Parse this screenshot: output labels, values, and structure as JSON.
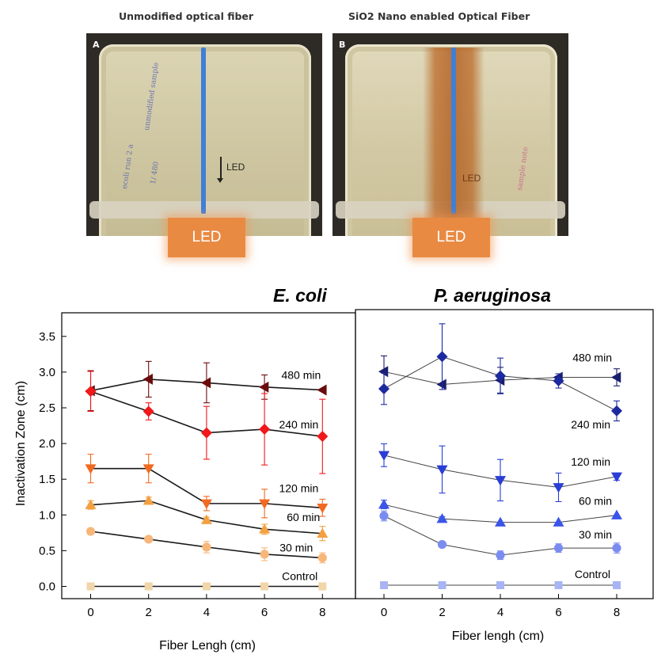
{
  "photos": {
    "a": {
      "title": "Unmodified optical fiber",
      "panel": "A",
      "label": "LED",
      "led": "LED"
    },
    "b": {
      "title": "SiO2 Nano enabled Optical Fiber",
      "panel": "B",
      "label": "LED",
      "led": "LED"
    }
  },
  "chart_data": [
    {
      "type": "line",
      "title": "E. coli",
      "xlabel": "Fiber Lengh (cm)",
      "ylabel": "Inactivation Zone (cm)",
      "xlim": [
        -1,
        9
      ],
      "ylim": [
        -0.2,
        3.8
      ],
      "x_ticks": [
        0,
        2,
        4,
        6,
        8
      ],
      "y_ticks": [
        "0.0",
        "0.5",
        "1.0",
        "1.5",
        "2.0",
        "2.5",
        "3.0",
        "3.5"
      ],
      "x": [
        0,
        2,
        4,
        6,
        8
      ],
      "series": [
        {
          "name": "480 min",
          "marker": "triangle-left",
          "color": "#6b0c0c",
          "line": "#1a1a1a",
          "values": [
            2.74,
            2.9,
            2.85,
            2.79,
            2.75
          ],
          "errors": [
            0.28,
            0.25,
            0.28,
            0.17,
            0.0
          ]
        },
        {
          "name": "240 min",
          "marker": "diamond",
          "color": "#f0181a",
          "line": "#1a1a1a",
          "values": [
            2.73,
            2.45,
            2.15,
            2.2,
            2.1
          ],
          "errors": [
            0.28,
            0.12,
            0.37,
            0.5,
            0.52
          ]
        },
        {
          "name": "120 min",
          "marker": "triangle-down",
          "color": "#f26a21",
          "line": "#1a1a1a",
          "values": [
            1.65,
            1.65,
            1.16,
            1.16,
            1.1
          ],
          "errors": [
            0.2,
            0.2,
            0.1,
            0.2,
            0.12
          ]
        },
        {
          "name": "60 min",
          "marker": "triangle-up",
          "color": "#f3a040",
          "line": "#1a1a1a",
          "values": [
            1.14,
            1.2,
            0.93,
            0.8,
            0.74
          ],
          "errors": [
            0.06,
            0.05,
            0.04,
            0.07,
            0.1
          ]
        },
        {
          "name": "30 min",
          "marker": "circle",
          "color": "#f7b77a",
          "line": "#1a1a1a",
          "values": [
            0.77,
            0.66,
            0.55,
            0.45,
            0.4
          ],
          "errors": [
            0.03,
            0.04,
            0.08,
            0.09,
            0.07
          ]
        },
        {
          "name": "Control",
          "marker": "square",
          "color": "#f0d6a8",
          "line": "#1a1a1a",
          "values": [
            0.0,
            0.0,
            0.0,
            0.0,
            0.0
          ],
          "errors": [
            0,
            0,
            0,
            0,
            0
          ]
        }
      ]
    },
    {
      "type": "line",
      "title": "P. aeruginosa",
      "xlabel": "Fiber lengh (cm)",
      "ylabel": "",
      "xlim": [
        -1,
        9
      ],
      "ylim": [
        -0.2,
        3.8
      ],
      "x_ticks": [
        0,
        2,
        4,
        6,
        8
      ],
      "x": [
        0,
        2,
        4,
        6,
        8
      ],
      "series": [
        {
          "name": "480 min",
          "marker": "triangle-left",
          "color": "#1a1e6e",
          "line": "#444444",
          "values": [
            2.99,
            2.81,
            2.87,
            2.91,
            2.91
          ],
          "errors": [
            0.22,
            0.0,
            0.18,
            0.0,
            0.12
          ]
        },
        {
          "name": "240 min",
          "marker": "diamond",
          "color": "#1c2aa0",
          "line": "#444444",
          "values": [
            2.75,
            3.2,
            2.93,
            2.86,
            2.44
          ],
          "errors": [
            0.22,
            0.46,
            0.25,
            0.1,
            0.14
          ]
        },
        {
          "name": "120 min",
          "marker": "triangle-down",
          "color": "#2a3ed6",
          "line": "#444444",
          "values": [
            1.82,
            1.62,
            1.47,
            1.37,
            1.52
          ],
          "errors": [
            0.16,
            0.33,
            0.29,
            0.2,
            0.05
          ]
        },
        {
          "name": "60 min",
          "marker": "triangle-up",
          "color": "#3b55ea",
          "line": "#444444",
          "values": [
            1.13,
            0.93,
            0.88,
            0.88,
            0.98
          ],
          "errors": [
            0.06,
            0.03,
            0.0,
            0.0,
            0.0
          ]
        },
        {
          "name": "30 min",
          "marker": "circle",
          "color": "#7b8cf0",
          "line": "#444444",
          "values": [
            0.97,
            0.57,
            0.42,
            0.52,
            0.52
          ],
          "errors": [
            0.07,
            0.0,
            0.06,
            0.06,
            0.07
          ]
        },
        {
          "name": "Control",
          "marker": "square",
          "color": "#a8b4f4",
          "line": "#444444",
          "values": [
            0.0,
            0.0,
            0.0,
            0.0,
            0.0
          ],
          "errors": [
            0,
            0,
            0,
            0,
            0
          ]
        }
      ]
    }
  ]
}
